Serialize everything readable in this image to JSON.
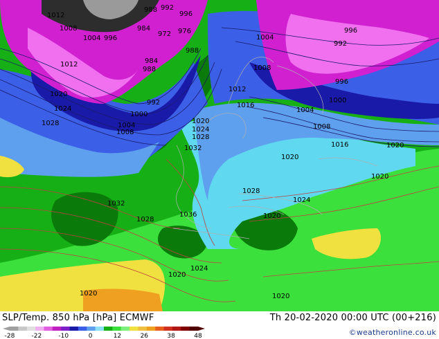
{
  "map": {
    "title": "SLP/Temp. 850 hPa [hPa] ECMWF",
    "valid_time": "Th 20-02-2020 00:00 UTC (00+216)",
    "credit": "©weatheronline.co.uk",
    "colors": {
      "very_cold": "#2d2d2d",
      "magenta": "#d020d0",
      "pink": "#f070f0",
      "dark_blue": "#1a1aa8",
      "blue": "#3b5fe6",
      "light_blue": "#5fa0ee",
      "cyan": "#5fd8f0",
      "dark_green": "#0a7a0a",
      "green": "#16b016",
      "light_green": "#3ce03c",
      "yellow": "#f0e040",
      "orange": "#f0a020",
      "isobar_cold": "#1a1a6a",
      "isobar_warm": "#c04040"
    },
    "legend": {
      "ticks": [
        "-28",
        "-22",
        "-10",
        "0",
        "12",
        "26",
        "38",
        "48"
      ],
      "swatches": [
        "#a0a0a0",
        "#c8c8c8",
        "#e0e0e0",
        "#f0b0f0",
        "#e060e0",
        "#c020c0",
        "#7d20c8",
        "#1a1aa8",
        "#3b5fe6",
        "#5fa0ee",
        "#8ce0f8",
        "#16b016",
        "#3ce03c",
        "#7df07d",
        "#f0e040",
        "#f0c040",
        "#f0a020",
        "#e86020",
        "#d03020",
        "#b01818",
        "#800000",
        "#500000"
      ]
    },
    "isobar_labels": [
      {
        "text": "1012",
        "name": "label-1012-a"
      },
      {
        "text": "988",
        "name": "label-988-a"
      },
      {
        "text": "992",
        "name": "label-992-a"
      },
      {
        "text": "996",
        "name": "label-996-a"
      },
      {
        "text": "1008",
        "name": "label-1008-a"
      },
      {
        "text": "1004",
        "name": "label-1004-a"
      },
      {
        "text": "996",
        "name": "label-996-b"
      },
      {
        "text": "984",
        "name": "label-984-a"
      },
      {
        "text": "972",
        "name": "label-972-a"
      },
      {
        "text": "976",
        "name": "label-976-a"
      },
      {
        "text": "1004",
        "name": "label-1004-b"
      },
      {
        "text": "996",
        "name": "label-996-c"
      },
      {
        "text": "992",
        "name": "label-992-b"
      },
      {
        "text": "988",
        "name": "label-988-b"
      },
      {
        "text": "1012",
        "name": "label-1012-b"
      },
      {
        "text": "1008",
        "name": "label-1008-b"
      },
      {
        "text": "984",
        "name": "label-984-b"
      },
      {
        "text": "988",
        "name": "label-988-c"
      },
      {
        "text": "996",
        "name": "label-996-d"
      },
      {
        "text": "1020",
        "name": "label-1020-a"
      },
      {
        "text": "1024",
        "name": "label-1024-a"
      },
      {
        "text": "1012",
        "name": "label-1012-c"
      },
      {
        "text": "992",
        "name": "label-992-c"
      },
      {
        "text": "1016",
        "name": "label-1016-a"
      },
      {
        "text": "1000",
        "name": "label-1000-a"
      },
      {
        "text": "1004",
        "name": "label-1004-c"
      },
      {
        "text": "1000",
        "name": "label-1000-b"
      },
      {
        "text": "1028",
        "name": "label-1028-a"
      },
      {
        "text": "1004",
        "name": "label-1004-d"
      },
      {
        "text": "1008",
        "name": "label-1008-c"
      },
      {
        "text": "1020",
        "name": "label-1020-b"
      },
      {
        "text": "1024",
        "name": "label-1024-b"
      },
      {
        "text": "1028",
        "name": "label-1028-b"
      },
      {
        "text": "1008",
        "name": "label-1008-d"
      },
      {
        "text": "1016",
        "name": "label-1016-b"
      },
      {
        "text": "1032",
        "name": "label-1032-a"
      },
      {
        "text": "1020",
        "name": "label-1020-c"
      },
      {
        "text": "1020",
        "name": "label-1020-d"
      },
      {
        "text": "1020",
        "name": "label-1020-e"
      },
      {
        "text": "1028",
        "name": "label-1028-c"
      },
      {
        "text": "1024",
        "name": "label-1024-c"
      },
      {
        "text": "1032",
        "name": "label-1032-b"
      },
      {
        "text": "1028",
        "name": "label-1028-d"
      },
      {
        "text": "1036",
        "name": "label-1036-a"
      },
      {
        "text": "1020",
        "name": "label-1020-f"
      },
      {
        "text": "1024",
        "name": "label-1024-d"
      },
      {
        "text": "1020",
        "name": "label-1020-g"
      },
      {
        "text": "1020",
        "name": "label-1020-h"
      },
      {
        "text": "1020",
        "name": "label-1020-i"
      }
    ]
  }
}
